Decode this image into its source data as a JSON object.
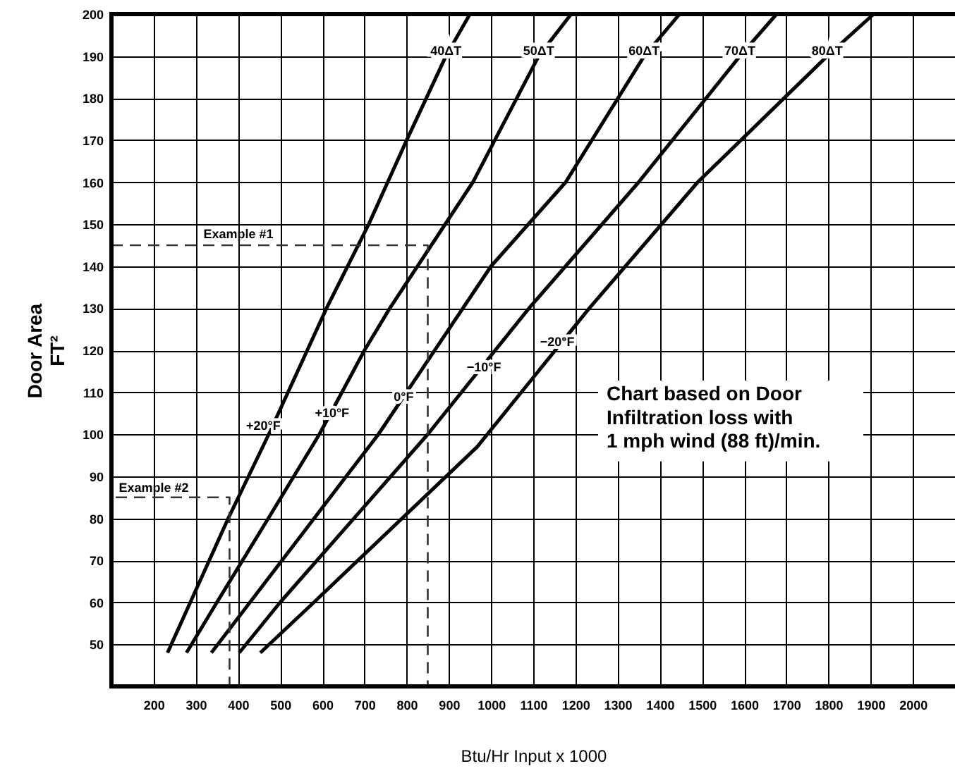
{
  "chart_data": {
    "type": "line",
    "xlabel": "Btu/Hr Input x 1000",
    "ylabel": "Door Area\nFT²",
    "xlim": [
      100,
      2100
    ],
    "ylim": [
      40,
      200
    ],
    "xticks": [
      200,
      300,
      400,
      500,
      600,
      700,
      800,
      900,
      1000,
      1100,
      1200,
      1300,
      1400,
      1500,
      1600,
      1700,
      1800,
      1900,
      2000
    ],
    "yticks": [
      50,
      60,
      70,
      80,
      90,
      100,
      110,
      120,
      130,
      140,
      150,
      160,
      170,
      180,
      190,
      200
    ],
    "grid": true,
    "marker": "none",
    "series": [
      {
        "name": "40ΔT",
        "color": "#000000",
        "x": [
          233,
          287,
          377,
          473,
          610,
          710,
          800,
          893,
          950
        ],
        "values": [
          48,
          60,
          80,
          100,
          130,
          150,
          170,
          190,
          200
        ]
      },
      {
        "name": "50ΔT",
        "color": "#000000",
        "x": [
          278,
          350,
          472,
          593,
          700,
          760,
          957,
          1113,
          1190
        ],
        "values": [
          48,
          60,
          80,
          100,
          120,
          130,
          160,
          190,
          200
        ]
      },
      {
        "name": "60ΔT",
        "color": "#000000",
        "x": [
          337,
          733,
          1000,
          1177,
          1363,
          1447
        ],
        "values": [
          48,
          100,
          140,
          160,
          190,
          200
        ]
      },
      {
        "name": "70ΔT",
        "color": "#000000",
        "x": [
          403,
          500,
          850,
          1090,
          1350,
          1590,
          1677
        ],
        "values": [
          48,
          60,
          100,
          130,
          160,
          190,
          200
        ]
      },
      {
        "name": "80ΔT",
        "color": "#000000",
        "x": [
          453,
          580,
          967,
          1233,
          1490,
          1797,
          1907
        ],
        "values": [
          48,
          60,
          97,
          130,
          160,
          190,
          200
        ]
      },
      {
        "color": "#333333",
        "line_style": "dashed",
        "x": [
          100,
          850,
          850
        ],
        "values": [
          145,
          145,
          40
        ]
      },
      {
        "color": "#333333",
        "line_style": "dashed",
        "x": [
          110,
          380,
          380
        ],
        "values": [
          85,
          85,
          40
        ]
      }
    ],
    "annotations": [
      {
        "text": "+20°F",
        "x": 460,
        "y": 102
      },
      {
        "text": "+10°F",
        "x": 623,
        "y": 105
      },
      {
        "text": "0°F",
        "x": 793,
        "y": 109
      },
      {
        "text": "−10°F",
        "x": 983,
        "y": 116
      },
      {
        "text": "−20°F",
        "x": 1157,
        "y": 122
      },
      "Example #1",
      "Example #2",
      "Chart based on Door\nInfiltration loss with\n1 mph wind (88 ft)/min."
    ]
  }
}
